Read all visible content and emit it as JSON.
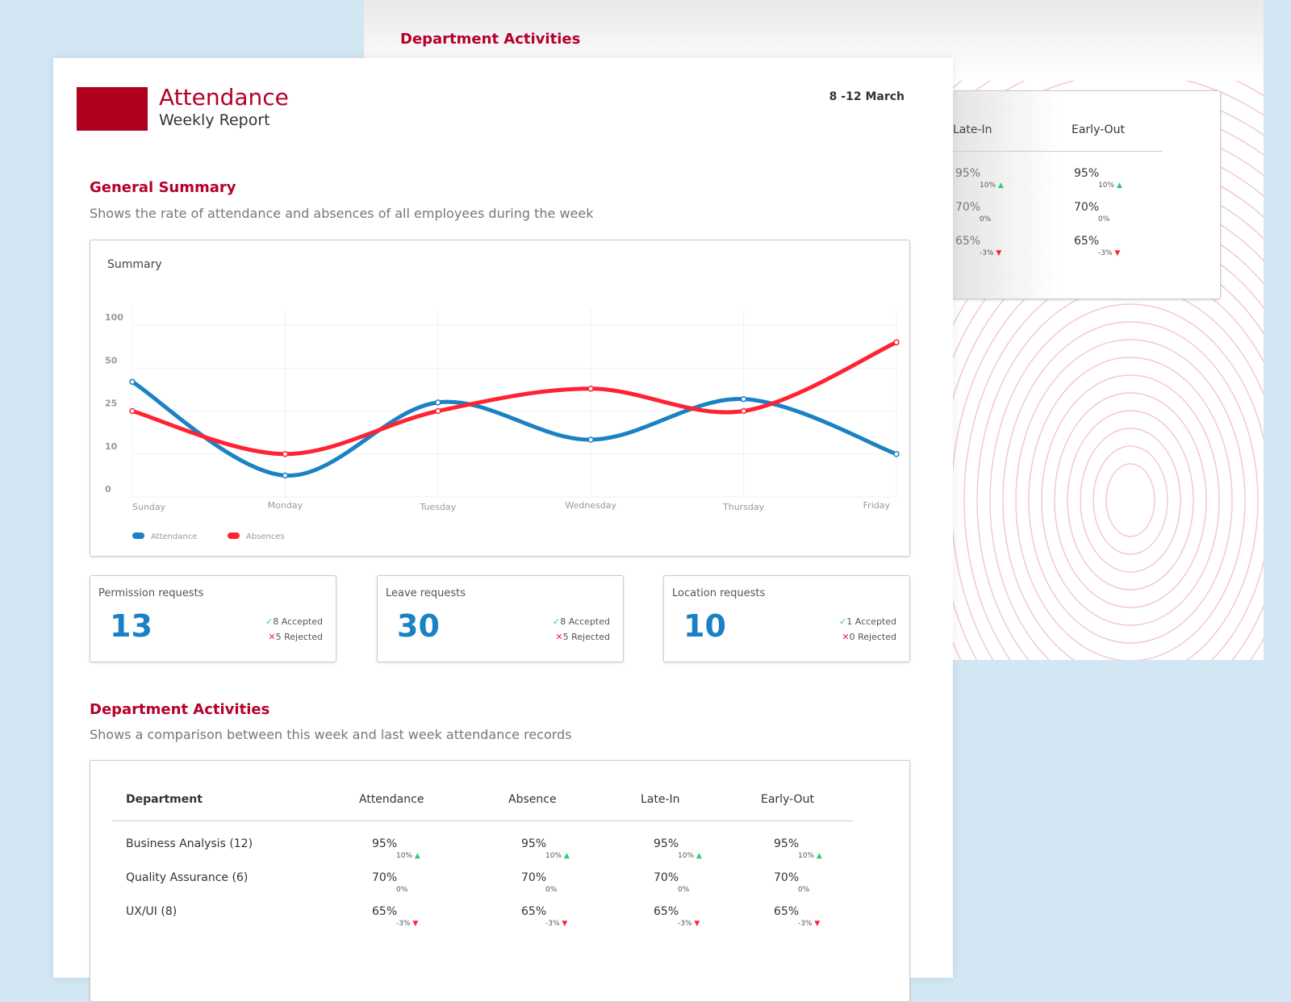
{
  "back_page": {
    "title": "Department Activities",
    "columns": [
      "Late-In",
      "Early-Out"
    ],
    "rows": [
      {
        "late_in": "95%",
        "late_in_delta": "10%",
        "late_in_dir": "up",
        "early_out": "95%",
        "early_out_delta": "10%",
        "early_out_dir": "up"
      },
      {
        "late_in": "70%",
        "late_in_delta": "0%",
        "late_in_dir": "none",
        "early_out": "70%",
        "early_out_delta": "0%",
        "early_out_dir": "none"
      },
      {
        "late_in": "65%",
        "late_in_delta": "-3%",
        "late_in_dir": "down",
        "early_out": "65%",
        "early_out_delta": "-3%",
        "early_out_dir": "down"
      }
    ]
  },
  "header": {
    "title": "Attendance",
    "subtitle": "Weekly Report",
    "date_range": "8 -12 March"
  },
  "summary": {
    "title": "General Summary",
    "description": "Shows the rate of attendance and absences of all employees during the week",
    "card_title": "Summary"
  },
  "chart_data": {
    "type": "line",
    "title": "Summary",
    "categories": [
      "Sunday",
      "Monday",
      "Tuesday",
      "Wednesday",
      "Thursday",
      "Friday"
    ],
    "y_ticks": [
      0,
      10,
      25,
      50,
      100
    ],
    "ylim": [
      0,
      100
    ],
    "grid": true,
    "legend_position": "bottom-left",
    "series": [
      {
        "name": "Attendance",
        "color": "#1a82c4",
        "values": [
          42,
          5,
          30,
          15,
          32,
          10
        ]
      },
      {
        "name": "Absences",
        "color": "#ff2233",
        "values": [
          25,
          10,
          25,
          38,
          25,
          80
        ]
      }
    ]
  },
  "requests": [
    {
      "title": "Permission requests",
      "count": "13",
      "accepted": "8 Accepted",
      "rejected": "5 Rejected"
    },
    {
      "title": "Leave requests",
      "count": "30",
      "accepted": "8 Accepted",
      "rejected": "5 Rejected"
    },
    {
      "title": "Location requests",
      "count": "10",
      "accepted": "1 Accepted",
      "rejected": "0 Rejected"
    }
  ],
  "departments": {
    "title": "Department Activities",
    "description": "Shows a comparison between this week and last week attendance records",
    "columns": [
      "Department",
      "Attendance",
      "Absence",
      "Late-In",
      "Early-Out"
    ],
    "rows": [
      {
        "name": "Business Analysis (12)",
        "value": "95%",
        "delta": "10%",
        "dir": "up"
      },
      {
        "name": "Quality Assurance (6)",
        "value": "70%",
        "delta": "0%",
        "dir": "none"
      },
      {
        "name": "UX/UI (8)",
        "value": "65%",
        "delta": "-3%",
        "dir": "down"
      }
    ]
  },
  "colors": {
    "brand": "#b5002a",
    "attendance": "#1a82c4",
    "absences": "#ff2233",
    "up": "#2ecc71",
    "down": "#ff1f3a"
  }
}
